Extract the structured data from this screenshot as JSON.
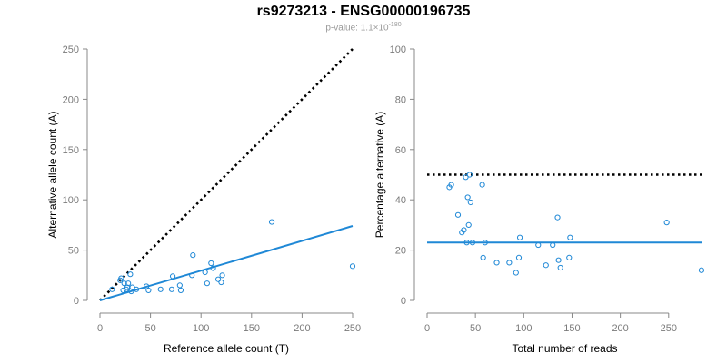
{
  "title": "rs9273213 - ENSG00000196735",
  "subtitle": {
    "prefix": "p-value: 1.1×10",
    "exponent": "-180"
  },
  "colors": {
    "points": "#1f88d6",
    "fit_line": "#1f88d6",
    "reference_line": "#000000",
    "axis": "#888888",
    "tick_text": "#7a7a7a"
  },
  "chart_data": [
    {
      "type": "scatter",
      "xlabel": "Reference allele count (T)",
      "ylabel": "Alternative allele count (A)",
      "xlim": [
        0,
        250
      ],
      "ylim": [
        0,
        250
      ],
      "xticks": [
        0,
        50,
        100,
        150,
        200,
        250
      ],
      "yticks": [
        0,
        50,
        100,
        150,
        200,
        250
      ],
      "points": {
        "x": [
          12,
          20,
          21,
          23,
          24,
          26,
          28,
          27,
          30,
          31,
          32,
          36,
          46,
          48,
          60,
          71,
          72,
          79,
          80,
          91,
          92,
          104,
          106,
          110,
          112,
          117,
          120,
          121,
          170,
          250
        ],
        "y": [
          11,
          20,
          22,
          10,
          17,
          11,
          17,
          13,
          26,
          9,
          13,
          11,
          14,
          10,
          11,
          11,
          24,
          15,
          10,
          25,
          45,
          28,
          17,
          37,
          32,
          21,
          18,
          25,
          78,
          34
        ]
      },
      "fit_line": {
        "x": [
          0,
          250
        ],
        "y": [
          0,
          74
        ]
      },
      "reference_line": {
        "style": "dotted",
        "x": [
          0,
          250
        ],
        "y": [
          0,
          250
        ]
      },
      "grid": false
    },
    {
      "type": "scatter",
      "xlabel": "Total number of reads",
      "ylabel": "Percentage alternative (A)",
      "xlim": [
        0,
        285
      ],
      "ylim": [
        0,
        100
      ],
      "xticks": [
        0,
        50,
        100,
        150,
        200,
        250
      ],
      "yticks": [
        0,
        20,
        40,
        60,
        80,
        100
      ],
      "points": {
        "x": [
          23,
          25,
          32,
          36,
          38,
          40,
          41,
          42,
          43,
          44,
          45,
          47,
          57,
          58,
          60,
          72,
          85,
          92,
          95,
          96,
          115,
          123,
          130,
          135,
          136,
          138,
          147,
          148,
          248,
          284
        ],
        "y": [
          45,
          46,
          34,
          27,
          28,
          49,
          23,
          41,
          30,
          50,
          39,
          23,
          46,
          17,
          23,
          15,
          15,
          11,
          17,
          25,
          22,
          14,
          22,
          33,
          16,
          13,
          17,
          25,
          31,
          12
        ]
      },
      "fit_line": {
        "x": [
          0,
          285
        ],
        "y": [
          23,
          23
        ]
      },
      "reference_line": {
        "style": "dotted",
        "x": [
          0,
          285
        ],
        "y": [
          50,
          50
        ]
      },
      "grid": false
    }
  ]
}
